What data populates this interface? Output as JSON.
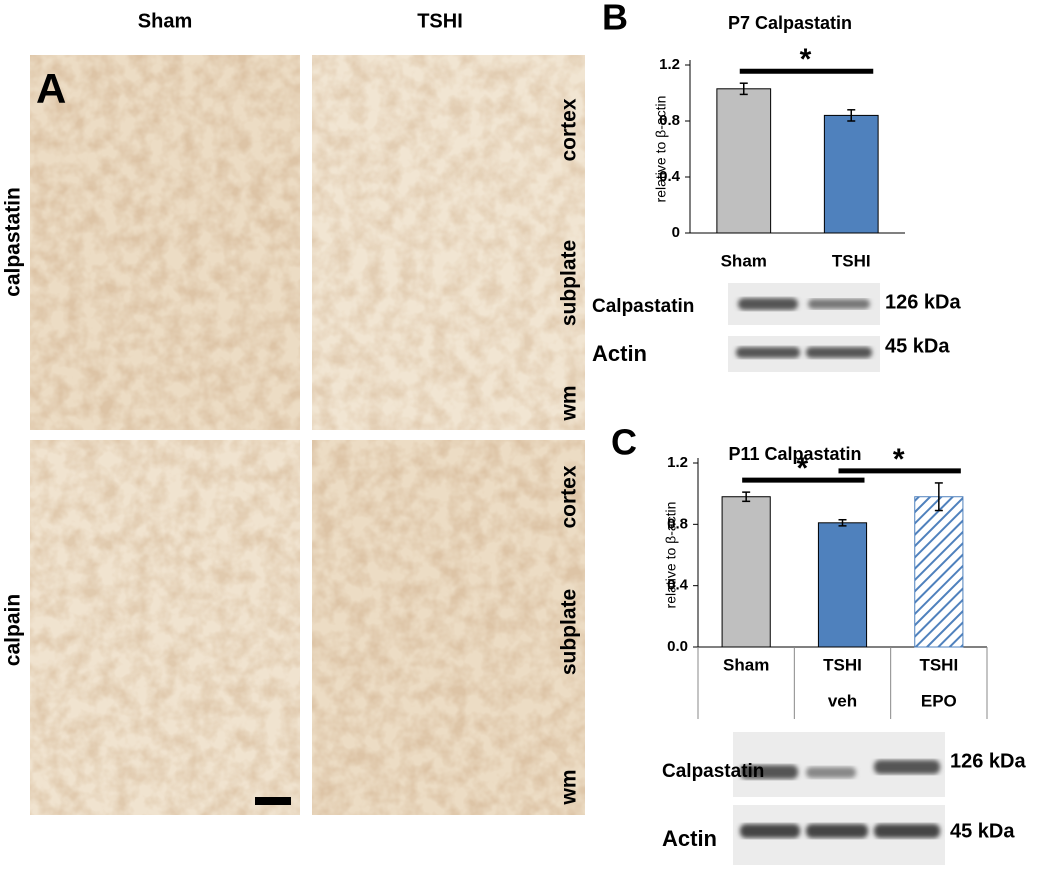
{
  "panel_a": {
    "label": "A",
    "columns": [
      "Sham",
      "TSHI"
    ],
    "rows": [
      "calpastatin",
      "calpain"
    ],
    "regions": [
      "cortex",
      "subplate",
      "wm"
    ]
  },
  "chart_data": [
    {
      "type": "bar",
      "panel": "B",
      "title": "P7 Calpastatin",
      "y_label": "relative to β-actin",
      "categories": [
        [
          "Sham"
        ],
        [
          "TSHI"
        ]
      ],
      "values": [
        1.03,
        0.84
      ],
      "errors": [
        0.04,
        0.04
      ],
      "colors": [
        "#bfbfbf",
        "#4f81bd"
      ],
      "hatched": [
        false,
        false
      ],
      "ylim": [
        0,
        1.2
      ],
      "yticks": [
        0,
        0.4,
        0.8,
        1.2
      ],
      "significance": [
        {
          "label": "*",
          "between": [
            0,
            1
          ]
        }
      ],
      "blot": [
        {
          "label": "Calpastatin",
          "size": "126 kDa"
        },
        {
          "label": "Actin",
          "size": "45 kDa"
        }
      ]
    },
    {
      "type": "bar",
      "panel": "C",
      "title": "P11 Calpastatin",
      "y_label": "relative to β-actin",
      "categories": [
        [
          "Sham"
        ],
        [
          "TSHI",
          "veh"
        ],
        [
          "TSHI",
          "EPO"
        ]
      ],
      "values": [
        0.98,
        0.81,
        0.98
      ],
      "errors": [
        0.03,
        0.02,
        0.09
      ],
      "colors": [
        "#bfbfbf",
        "#4f81bd",
        "#4f81bd"
      ],
      "hatched": [
        false,
        false,
        true
      ],
      "ylim": [
        0,
        1.2
      ],
      "yticks": [
        {
          "value": 0,
          "label": "0.0"
        },
        0.4,
        0.8,
        1.2
      ],
      "significance": [
        {
          "label": "*",
          "between": [
            0,
            1
          ]
        },
        {
          "label": "*",
          "between": [
            1,
            2
          ]
        }
      ],
      "blot": [
        {
          "label": "Calpastatin",
          "size": "126 kDa"
        },
        {
          "label": "Actin",
          "size": "45 kDa"
        }
      ]
    }
  ]
}
